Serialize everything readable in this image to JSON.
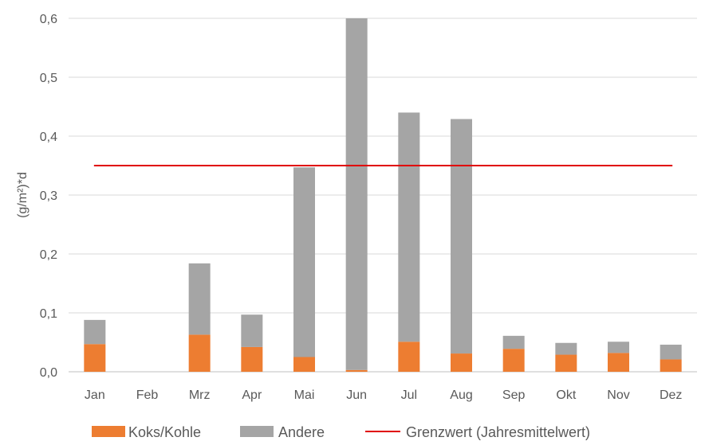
{
  "chart_data": {
    "type": "bar",
    "stacked": true,
    "title": "",
    "xlabel": "",
    "ylabel": "(g/m²)*d",
    "ylim": [
      0,
      0.6
    ],
    "yticks": [
      "0,0",
      "0,1",
      "0,2",
      "0,3",
      "0,4",
      "0,5",
      "0,6"
    ],
    "grid": true,
    "legend_position": "bottom",
    "categories": [
      "Jan",
      "Feb",
      "Mrz",
      "Apr",
      "Mai",
      "Jun",
      "Jul",
      "Aug",
      "Sep",
      "Okt",
      "Nov",
      "Dez"
    ],
    "series": [
      {
        "name": "Koks/Kohle",
        "color": "#ED7D31",
        "values": [
          0.047,
          0,
          0.063,
          0.042,
          0.025,
          0.003,
          0.051,
          0.031,
          0.039,
          0.029,
          0.032,
          0.021
        ]
      },
      {
        "name": "Andere",
        "color": "#A5A5A5",
        "values": [
          0.041,
          0,
          0.121,
          0.055,
          0.322,
          0.597,
          0.389,
          0.398,
          0.022,
          0.02,
          0.019,
          0.025
        ]
      }
    ],
    "reference_line": {
      "name": "Grenzwert (Jahresmittelwert)",
      "value": 0.35,
      "color": "#E00000"
    }
  }
}
